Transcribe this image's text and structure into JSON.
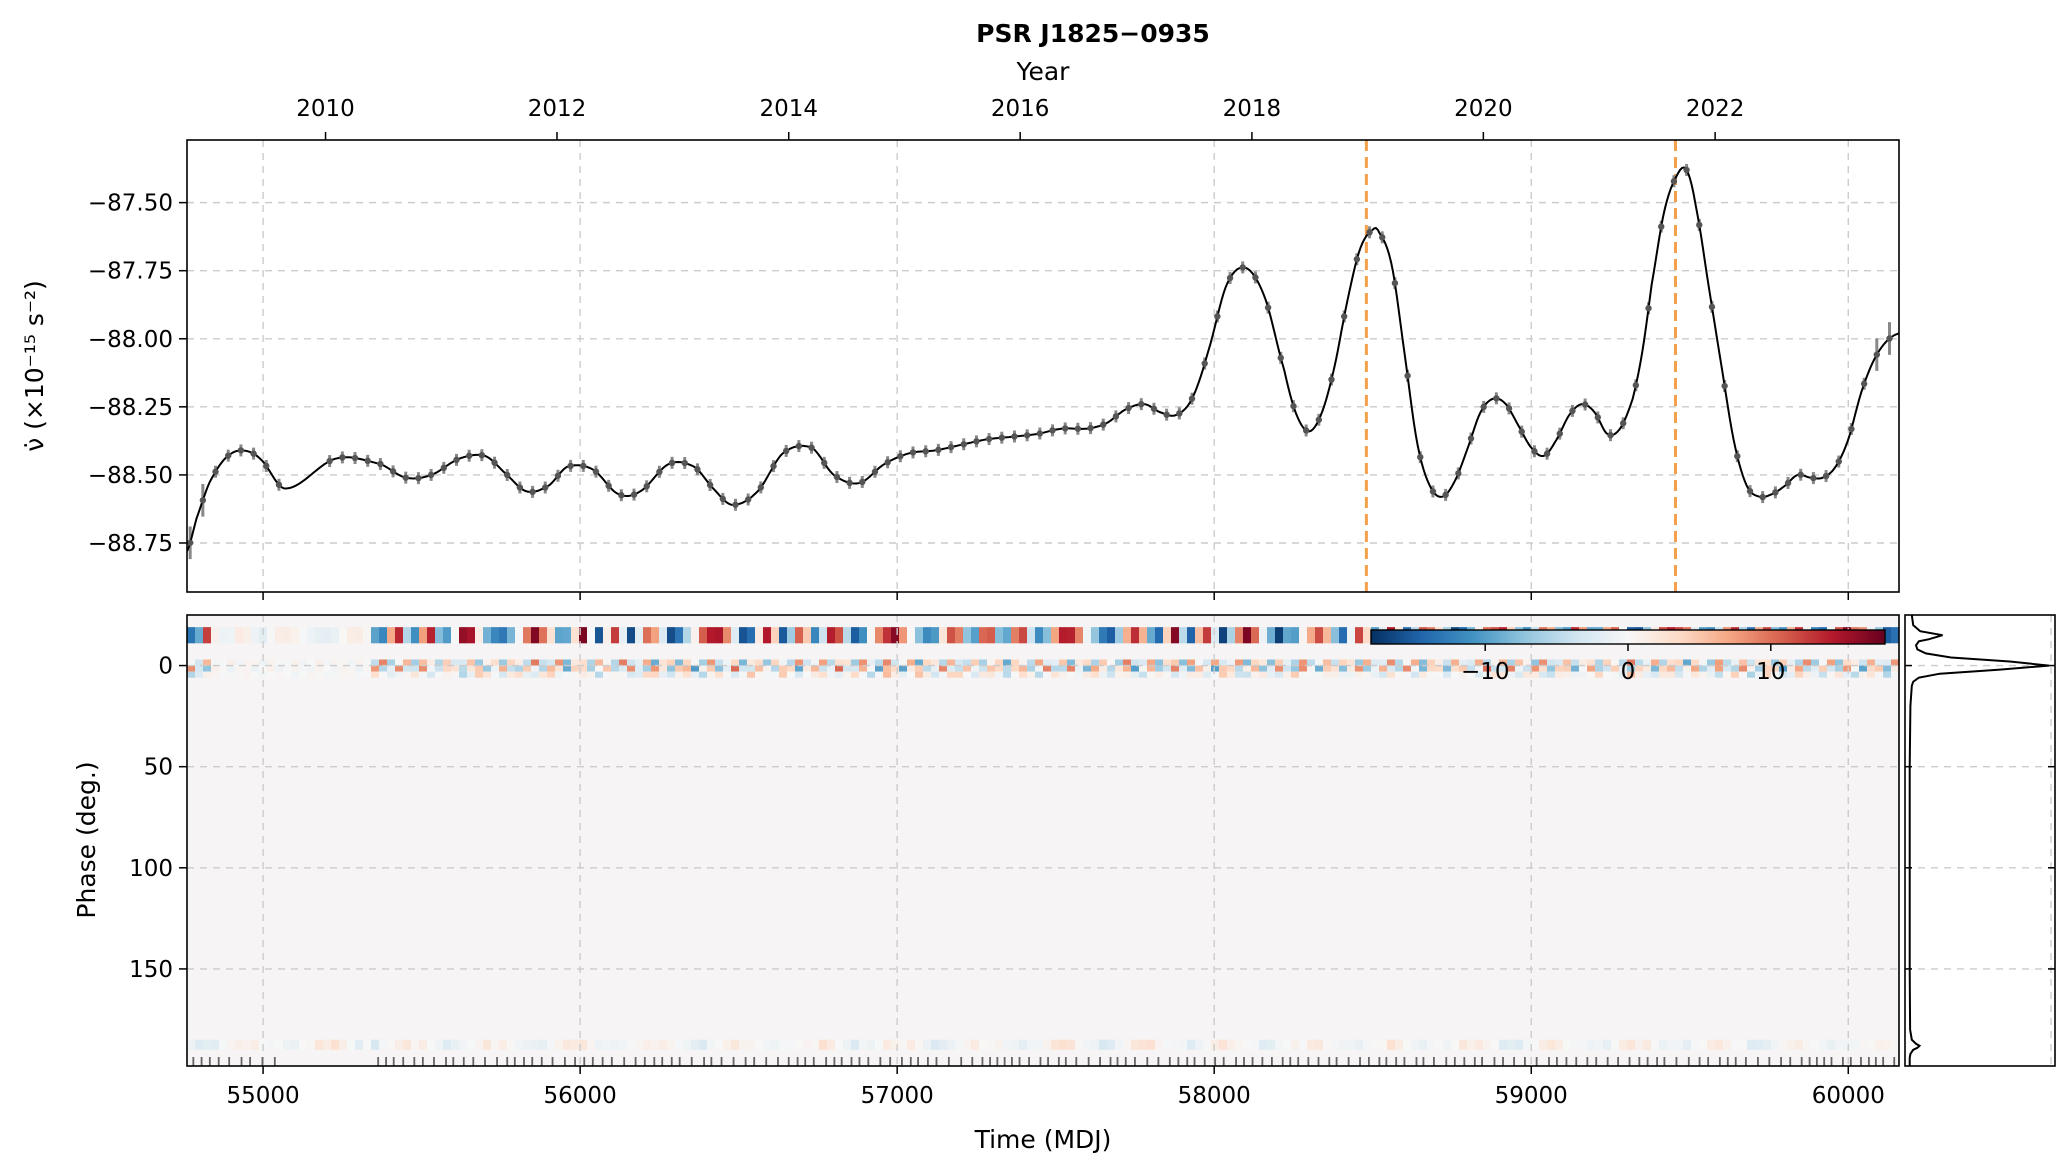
{
  "title": "PSR J1825−0935",
  "colors": {
    "line": "#000000",
    "errorbar": "#888888",
    "glitch_marker": "#f5a04a",
    "grid": "#cccccc",
    "diverging_low": "#053061",
    "diverging_mid": "#f7f7f7",
    "diverging_high": "#67001f"
  },
  "chart_data": [
    {
      "name": "spin-down-rate",
      "type": "line",
      "ylabel": "ν̇ (×10⁻¹⁵ s⁻²)",
      "top_axis_label": "Year",
      "xlim": [
        54760,
        60160
      ],
      "ylim": [
        -88.93,
        -87.27
      ],
      "yticks": [
        -87.5,
        -87.75,
        -88.0,
        -88.25,
        -88.5,
        -88.75
      ],
      "ytick_labels": [
        "−87.50",
        "−87.75",
        "−88.00",
        "−88.25",
        "−88.50",
        "−88.75"
      ],
      "year_ticks": [
        2010,
        2012,
        2014,
        2016,
        2018,
        2020,
        2022
      ],
      "grid": true,
      "glitch_epochs_mjd": [
        58480,
        59455
      ],
      "x": [
        54760,
        54790,
        54830,
        54880,
        54930,
        54990,
        55070,
        55230,
        55370,
        55450,
        55530,
        55620,
        55700,
        55760,
        55830,
        55900,
        55960,
        56040,
        56120,
        56190,
        56280,
        56360,
        56420,
        56480,
        56560,
        56640,
        56730,
        56800,
        56880,
        56960,
        57040,
        57120,
        57200,
        57280,
        57360,
        57440,
        57520,
        57600,
        57660,
        57720,
        57780,
        57830,
        57880,
        57930,
        57980,
        58040,
        58100,
        58160,
        58220,
        58260,
        58300,
        58340,
        58380,
        58420,
        58460,
        58500,
        58520,
        58560,
        58600,
        58640,
        58680,
        58720,
        58760,
        58800,
        58840,
        58880,
        58920,
        58960,
        59000,
        59040,
        59080,
        59120,
        59160,
        59200,
        59240,
        59280,
        59320,
        59350,
        59380,
        59420,
        59460,
        59490,
        59520,
        59560,
        59600,
        59640,
        59680,
        59720,
        59760,
        59800,
        59840,
        59880,
        59920,
        59960,
        60000,
        60040,
        60080,
        60120,
        60160
      ],
      "values": [
        -88.78,
        -88.66,
        -88.53,
        -88.44,
        -88.41,
        -88.44,
        -88.55,
        -88.44,
        -88.46,
        -88.51,
        -88.5,
        -88.44,
        -88.43,
        -88.49,
        -88.56,
        -88.54,
        -88.47,
        -88.48,
        -88.57,
        -88.56,
        -88.46,
        -88.47,
        -88.55,
        -88.61,
        -88.56,
        -88.42,
        -88.4,
        -88.5,
        -88.53,
        -88.46,
        -88.42,
        -88.41,
        -88.39,
        -88.37,
        -88.36,
        -88.35,
        -88.33,
        -88.33,
        -88.31,
        -88.26,
        -88.24,
        -88.27,
        -88.28,
        -88.22,
        -88.05,
        -87.8,
        -87.74,
        -87.85,
        -88.11,
        -88.28,
        -88.34,
        -88.27,
        -88.1,
        -87.86,
        -87.67,
        -87.6,
        -87.61,
        -87.73,
        -88.05,
        -88.38,
        -88.54,
        -88.58,
        -88.52,
        -88.4,
        -88.27,
        -88.22,
        -88.24,
        -88.32,
        -88.4,
        -88.43,
        -88.37,
        -88.28,
        -88.24,
        -88.27,
        -88.35,
        -88.33,
        -88.22,
        -88.05,
        -87.8,
        -87.53,
        -87.4,
        -87.38,
        -87.52,
        -87.81,
        -88.1,
        -88.38,
        -88.54,
        -88.58,
        -88.57,
        -88.54,
        -88.5,
        -88.51,
        -88.51,
        -88.47,
        -88.37,
        -88.2,
        -88.08,
        -88.01,
        -87.98
      ]
    },
    {
      "name": "pulse-profile-residuals",
      "type": "heatmap",
      "xlabel": "Time (MDJ)",
      "ylabel": "Phase (deg.)",
      "xlim": [
        54760,
        60160
      ],
      "xticks": [
        55000,
        56000,
        57000,
        58000,
        59000,
        60000
      ],
      "ylim": [
        -25,
        198
      ],
      "yticks": [
        0,
        50,
        100,
        150
      ],
      "colorbar_ticks": [
        -10,
        0,
        10
      ],
      "colorbar_tick_labels": [
        "−10",
        "0",
        "10"
      ],
      "colorbar_range": [
        -18,
        18
      ],
      "colormap": "RdBu_r",
      "grid": true
    },
    {
      "name": "mean-pulse-profile",
      "type": "line",
      "orientation": "vertical",
      "ylim": [
        -25,
        198
      ],
      "phase": [
        -25,
        -20,
        -17,
        -15,
        -13,
        -12,
        -10,
        -8,
        -6,
        -4,
        -2,
        0,
        2,
        4,
        6,
        8,
        10,
        20,
        50,
        100,
        150,
        180,
        185,
        187,
        188,
        189,
        190,
        192,
        194,
        198
      ],
      "intensity": [
        0.02,
        0.03,
        0.08,
        0.24,
        0.14,
        0.07,
        0.05,
        0.06,
        0.12,
        0.3,
        0.72,
        1.0,
        0.65,
        0.22,
        0.07,
        0.03,
        0.02,
        0.01,
        0.005,
        0.005,
        0.005,
        0.008,
        0.02,
        0.05,
        0.075,
        0.06,
        0.03,
        0.01,
        0.005,
        0.005
      ]
    }
  ]
}
